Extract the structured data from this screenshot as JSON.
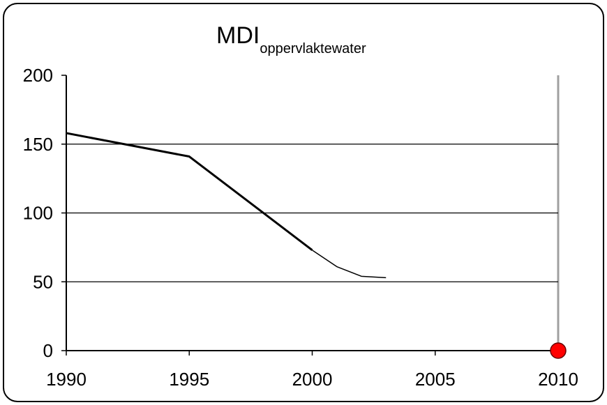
{
  "chart_data": {
    "type": "line",
    "title": "MDI",
    "title_subscript": "oppervlaktewater",
    "xlim": [
      1990,
      2010
    ],
    "xticks": [
      1990,
      1995,
      2000,
      2005,
      2010
    ],
    "ylim": [
      0,
      200
    ],
    "yticks": [
      0,
      50,
      100,
      150,
      200
    ],
    "grid": true,
    "series": [
      {
        "color": "#000000",
        "width": 3,
        "x": [
          1990,
          1995,
          2000
        ],
        "values": [
          158,
          141,
          73
        ]
      },
      {
        "color": "#000000",
        "width": 1.5,
        "x": [
          2000,
          2001,
          2002,
          2003
        ],
        "values": [
          73,
          61,
          54,
          53
        ]
      },
      {
        "color": "#ff0000",
        "marker": "circle",
        "x": [
          2010
        ],
        "values": [
          0
        ]
      }
    ]
  }
}
